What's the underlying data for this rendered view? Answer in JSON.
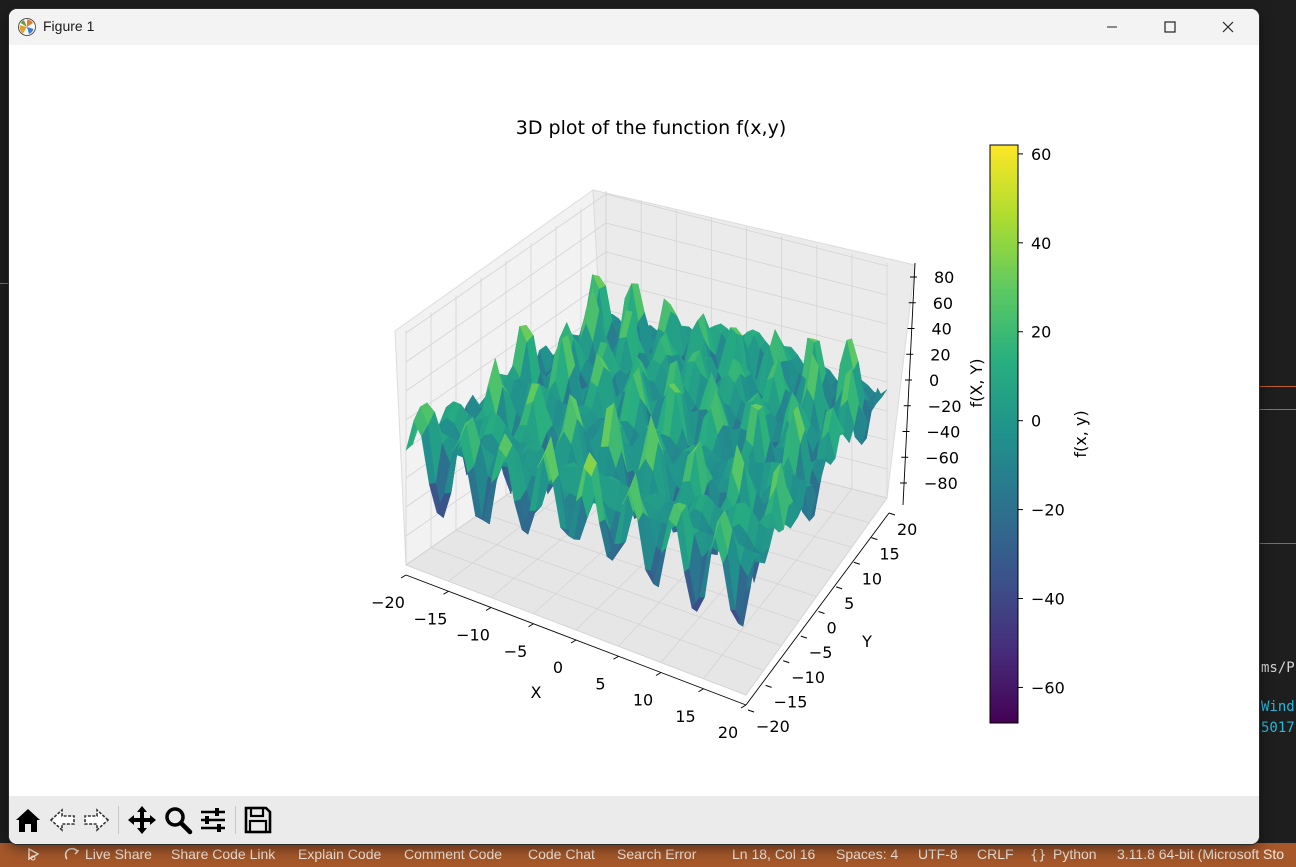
{
  "window": {
    "title": "Figure 1",
    "controls": {
      "minimize": "minimize-icon",
      "maximize": "maximize-icon",
      "close": "close-icon"
    }
  },
  "toolbar": {
    "buttons": [
      "home-icon",
      "back-icon",
      "forward-icon",
      "pan-icon",
      "zoom-icon",
      "configure-subplots-icon",
      "save-icon"
    ]
  },
  "chart_data": {
    "type": "surface-3d",
    "title": "3D plot of the function f(x,y)",
    "xlabel": "X",
    "ylabel": "Y",
    "zlabel": "f(X, Y)",
    "colormap": "viridis",
    "xlim": [
      -20,
      20
    ],
    "ylim": [
      -20,
      20
    ],
    "zlim": [
      -90,
      90
    ],
    "x_ticks": [
      "−20",
      "−15",
      "−10",
      "−5",
      "0",
      "5",
      "10",
      "15",
      "20"
    ],
    "y_ticks": [
      "−20",
      "−15",
      "−10",
      "−5",
      "0",
      "5",
      "10",
      "15",
      "20"
    ],
    "z_ticks": [
      "80",
      "60",
      "40",
      "20",
      "0",
      "−20",
      "−40",
      "−60",
      "−80"
    ],
    "colorbar": {
      "label": "f(x, y)",
      "range": [
        -68,
        62
      ],
      "ticks": [
        "60",
        "40",
        "20",
        "0",
        "−20",
        "−40",
        "−60"
      ]
    },
    "grid": true
  },
  "statusbar": {
    "items": [
      "Live Share",
      "Share Code Link",
      "Explain Code",
      "Comment Code",
      "Code Chat",
      "Search Error",
      "Ln 18, Col 16",
      "Spaces: 4",
      "UTF-8",
      "CRLF",
      "Python",
      "3.11.8 64-bit (Microsoft Sto"
    ]
  },
  "background": {
    "fragments": [
      "ms/P",
      "Wind",
      "5017"
    ]
  },
  "colors": {
    "statusbar": "#a6582a",
    "titlebar": "#f3f3f3",
    "toolbar": "#ebebeb",
    "viridis_low": "#440154",
    "viridis_mid": "#21918c",
    "viridis_high": "#fde725"
  }
}
